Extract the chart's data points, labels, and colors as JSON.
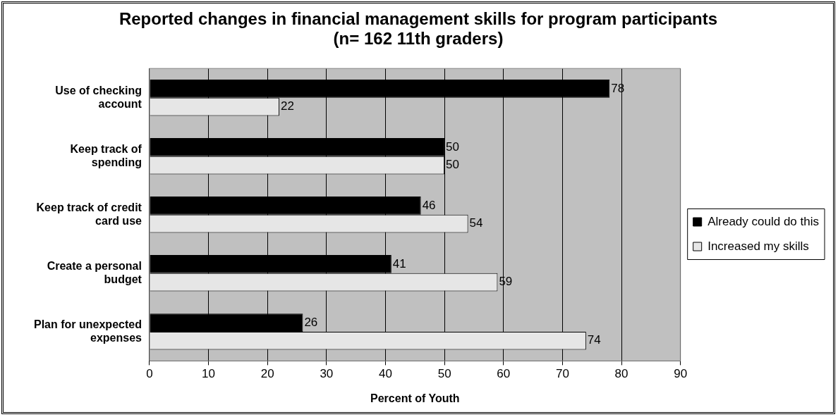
{
  "chart_data": {
    "type": "bar",
    "orientation": "horizontal",
    "title": "Reported changes in financial management skills for program participants\n(n= 162 11th graders)",
    "xlabel": "Percent of Youth",
    "categories": [
      "Use of checking account",
      "Keep track of spending",
      "Keep track of credit card use",
      "Create a personal budget",
      "Plan for unexpected expenses"
    ],
    "series": [
      {
        "name": "Already could do this",
        "color": "#000000",
        "values": [
          78,
          50,
          46,
          41,
          26
        ]
      },
      {
        "name": "Increased my skills",
        "color": "#e6e6e6",
        "values": [
          22,
          50,
          54,
          59,
          74
        ]
      }
    ],
    "xlim": [
      0,
      90
    ],
    "xticks": [
      0,
      10,
      20,
      30,
      40,
      50,
      60,
      70,
      80,
      90
    ],
    "grid": "x",
    "legend": "right",
    "data_labels": true
  }
}
